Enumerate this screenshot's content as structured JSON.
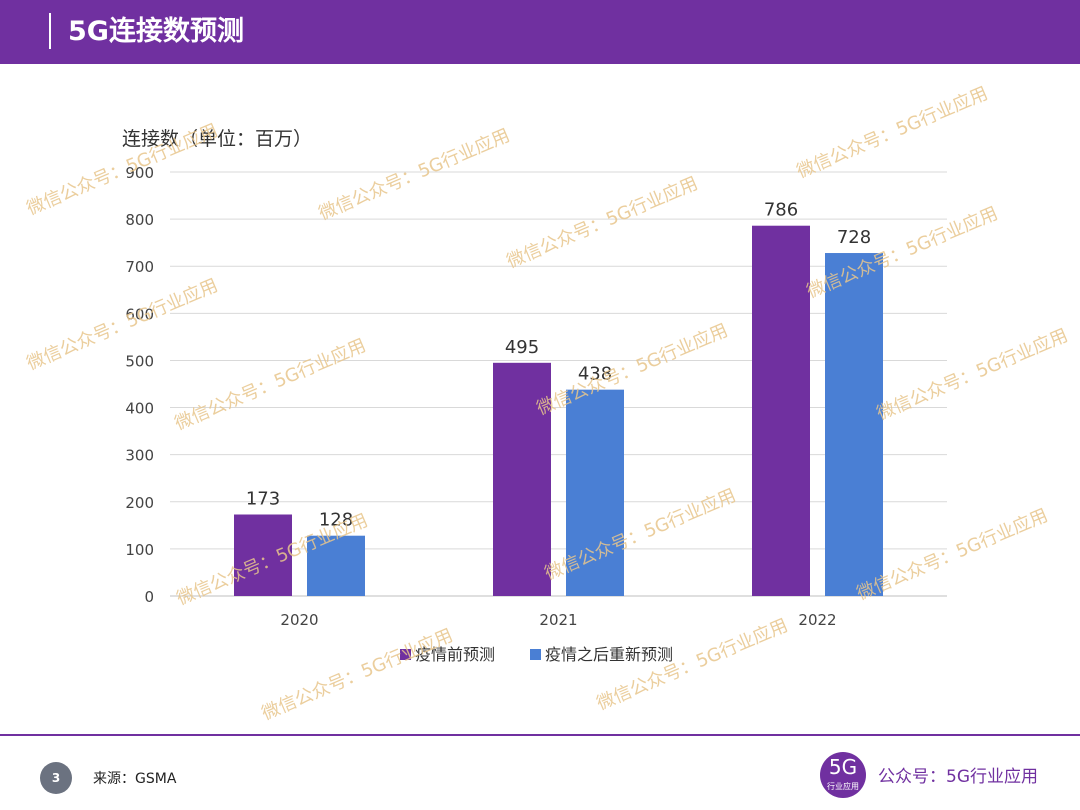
{
  "header": {
    "title": "5G连接数预测"
  },
  "chart_data": {
    "type": "bar",
    "title": "",
    "ylabel": "连接数（单位：百万）",
    "xlabel": "",
    "categories": [
      "2020",
      "2021",
      "2022"
    ],
    "series": [
      {
        "name": "疫情前预测",
        "values": [
          173,
          495,
          786
        ],
        "color": "#7030a0"
      },
      {
        "name": "疫情之后重新预测",
        "values": [
          128,
          438,
          728
        ],
        "color": "#4a7fd4"
      }
    ],
    "ylim": [
      0,
      900
    ],
    "yticks": [
      0,
      100,
      200,
      300,
      400,
      500,
      600,
      700,
      800,
      900
    ],
    "grid": true,
    "legend": "bottom-center"
  },
  "watermark": {
    "text": "微信公众号：5G行业应用",
    "color": "#e8c68c"
  },
  "footer": {
    "page_number": "3",
    "source": "来源：GSMA",
    "logo_big": "5G",
    "logo_small": "行业应用",
    "account": "公众号：5G行业应用"
  }
}
